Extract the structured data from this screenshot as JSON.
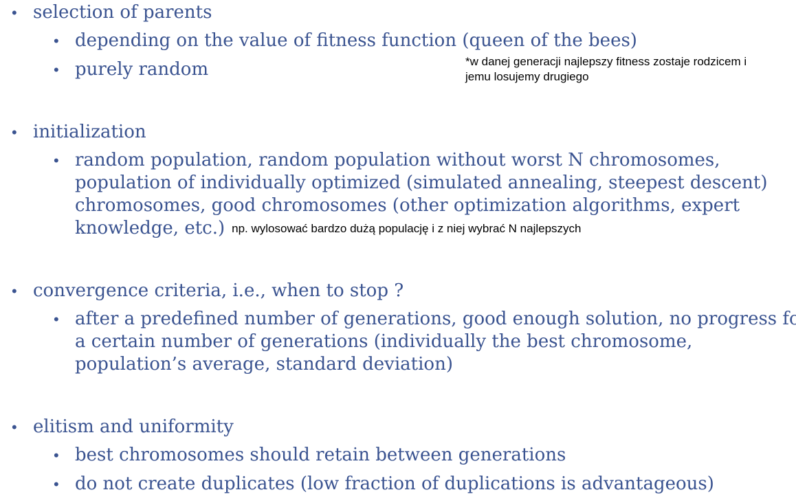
{
  "sections": [
    {
      "heading": "selection of parents",
      "items": [
        "depending on the value of fitness function (queen of the bees)",
        "purely random"
      ],
      "note_lines": [
        "*w danej generacji najlepszy fitness zostaje rodzicem i",
        "jemu losujemy drugiego"
      ]
    },
    {
      "heading": "initialization",
      "item_lines": [
        "random population, random population without worst N chromosomes,",
        "population of individually optimized (simulated annealing, steepest descent)",
        "chromosomes, good chromosomes (other optimization algorithms, expert",
        "knowledge, etc.)"
      ],
      "inline_note": "np. wylosować bardzo dużą populację i z niej wybrać N najlepszych"
    },
    {
      "heading": "convergence criteria, i.e., when to stop ?",
      "item_lines": [
        "after a predefined number of generations, good enough solution, no progress for",
        "a certain number of generations (individually the best chromosome,",
        "population’s average, standard deviation)"
      ]
    },
    {
      "heading": "elitism and uniformity",
      "items": [
        "best chromosomes should retain between generations",
        "do not create duplicates (low fraction of duplications is advantageous)"
      ]
    }
  ],
  "bullet_glyph": "•",
  "colors": {
    "text": "#3a5390",
    "note": "#000000",
    "background": "#ffffff"
  }
}
